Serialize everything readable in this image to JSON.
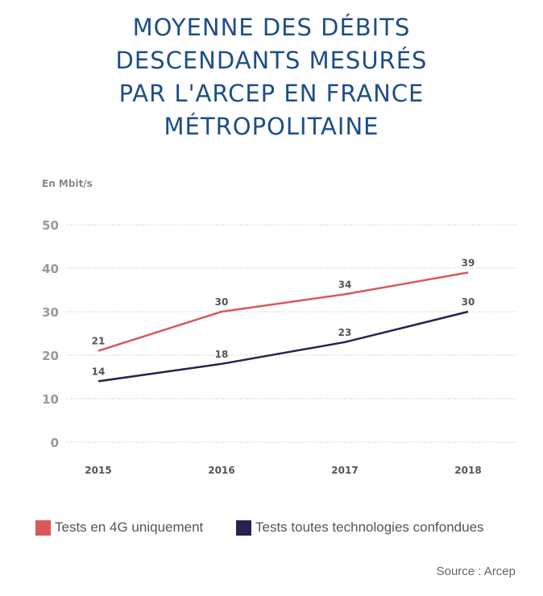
{
  "chart_data": {
    "type": "line",
    "title": [
      "MOYENNE DES DÉBITS",
      "DESCENDANTS MESURÉS",
      "PAR L'ARCEP EN FRANCE",
      "MÉTROPOLITAINE"
    ],
    "ylabel": "En Mbit/s",
    "xlabel": "",
    "categories": [
      "2015",
      "2016",
      "2017",
      "2018"
    ],
    "ylim": [
      0,
      50
    ],
    "yticks": [
      0,
      10,
      20,
      30,
      40,
      50
    ],
    "grid": true,
    "legend_position": "bottom",
    "series": [
      {
        "name": "Tests en 4G uniquement",
        "values": [
          21,
          30,
          34,
          39
        ],
        "color": "#d9585a"
      },
      {
        "name": "Tests toutes technologies confondues",
        "values": [
          14,
          18,
          23,
          30
        ],
        "color": "#2a2150"
      }
    ],
    "source": "Source : Arcep"
  }
}
